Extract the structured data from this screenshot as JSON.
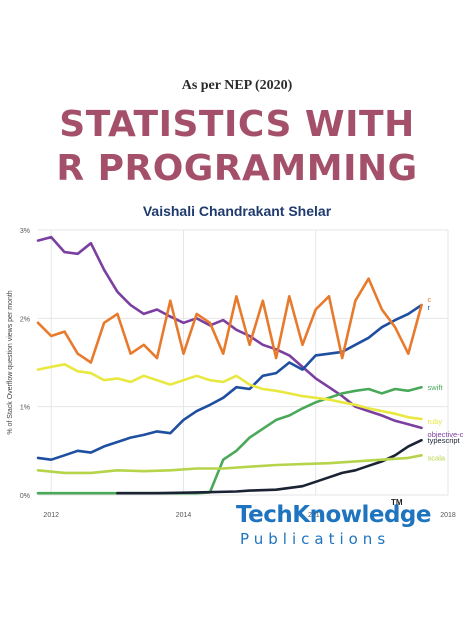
{
  "cover": {
    "edition": "As per NEP (2020)",
    "title_line1": "STATISTICS WITH",
    "title_line2": "R PROGRAMMING",
    "author": "Vaishali Chandrakant Shelar",
    "title_color": "#a4506a",
    "author_color": "#1f3a6e"
  },
  "publisher": {
    "name": "TechKnowledge",
    "tagline": "Publications",
    "trademark": "TM",
    "brand_color": "#1f74c0"
  },
  "chart_data": {
    "type": "line",
    "ylabel": "% of Stack Overflow question views per month",
    "xlabel": "",
    "yticks": [
      "0%",
      "1%",
      "2%",
      "3%"
    ],
    "xticks": [
      "2012",
      "2014",
      "2016",
      "2018"
    ],
    "ylim": [
      0,
      3
    ],
    "xlim": [
      2011.8,
      2018.0
    ],
    "grid": true,
    "series": [
      {
        "name": "objective-c",
        "color": "#7b3fa0",
        "x": [
          2011.8,
          2012.0,
          2012.2,
          2012.4,
          2012.6,
          2012.8,
          2013.0,
          2013.2,
          2013.4,
          2013.6,
          2013.8,
          2014.0,
          2014.2,
          2014.4,
          2014.6,
          2014.8,
          2015.0,
          2015.2,
          2015.4,
          2015.6,
          2015.8,
          2016.0,
          2016.2,
          2016.4,
          2016.6,
          2016.8,
          2017.0,
          2017.2,
          2017.4,
          2017.6
        ],
        "y": [
          2.88,
          2.92,
          2.75,
          2.73,
          2.85,
          2.55,
          2.3,
          2.15,
          2.05,
          2.1,
          2.02,
          1.95,
          2.0,
          1.92,
          1.98,
          1.87,
          1.8,
          1.7,
          1.65,
          1.58,
          1.45,
          1.32,
          1.22,
          1.12,
          1.0,
          0.95,
          0.9,
          0.84,
          0.8,
          0.76
        ]
      },
      {
        "name": "r",
        "color": "#1f4fa0",
        "x": [
          2011.8,
          2012.0,
          2012.2,
          2012.4,
          2012.6,
          2012.8,
          2013.0,
          2013.2,
          2013.4,
          2013.6,
          2013.8,
          2014.0,
          2014.2,
          2014.4,
          2014.6,
          2014.8,
          2015.0,
          2015.2,
          2015.4,
          2015.6,
          2015.8,
          2016.0,
          2016.2,
          2016.4,
          2016.6,
          2016.8,
          2017.0,
          2017.2,
          2017.4,
          2017.6
        ],
        "y": [
          0.42,
          0.4,
          0.45,
          0.5,
          0.48,
          0.55,
          0.6,
          0.65,
          0.68,
          0.72,
          0.7,
          0.85,
          0.95,
          1.02,
          1.1,
          1.22,
          1.2,
          1.35,
          1.38,
          1.5,
          1.42,
          1.58,
          1.6,
          1.62,
          1.7,
          1.78,
          1.9,
          1.98,
          2.05,
          2.15
        ]
      },
      {
        "name": "c",
        "color": "#e87a2d",
        "x": [
          2011.8,
          2012.0,
          2012.2,
          2012.4,
          2012.6,
          2012.8,
          2013.0,
          2013.2,
          2013.4,
          2013.6,
          2013.8,
          2014.0,
          2014.2,
          2014.4,
          2014.6,
          2014.8,
          2015.0,
          2015.2,
          2015.4,
          2015.6,
          2015.8,
          2016.0,
          2016.2,
          2016.4,
          2016.6,
          2016.8,
          2017.0,
          2017.2,
          2017.4,
          2017.6
        ],
        "y": [
          1.95,
          1.8,
          1.85,
          1.6,
          1.5,
          1.95,
          2.05,
          1.6,
          1.7,
          1.55,
          2.2,
          1.6,
          2.05,
          1.95,
          1.6,
          2.25,
          1.7,
          2.2,
          1.55,
          2.25,
          1.7,
          2.1,
          2.25,
          1.55,
          2.2,
          2.45,
          2.1,
          1.9,
          1.6,
          2.15
        ]
      },
      {
        "name": "swift",
        "color": "#4aa85a",
        "x": [
          2011.8,
          2012.4,
          2013.0,
          2013.6,
          2014.2,
          2014.4,
          2014.6,
          2014.8,
          2015.0,
          2015.2,
          2015.4,
          2015.6,
          2015.8,
          2016.0,
          2016.2,
          2016.4,
          2016.6,
          2016.8,
          2017.0,
          2017.2,
          2017.4,
          2017.6
        ],
        "y": [
          0.02,
          0.02,
          0.02,
          0.02,
          0.02,
          0.03,
          0.4,
          0.5,
          0.65,
          0.75,
          0.85,
          0.9,
          0.98,
          1.05,
          1.1,
          1.15,
          1.18,
          1.2,
          1.15,
          1.2,
          1.18,
          1.22
        ]
      },
      {
        "name": "ruby",
        "color": "#e8e840",
        "x": [
          2011.8,
          2012.0,
          2012.2,
          2012.4,
          2012.6,
          2012.8,
          2013.0,
          2013.2,
          2013.4,
          2013.6,
          2013.8,
          2014.0,
          2014.2,
          2014.4,
          2014.6,
          2014.8,
          2015.0,
          2015.2,
          2015.4,
          2015.6,
          2015.8,
          2016.0,
          2016.2,
          2016.4,
          2016.6,
          2016.8,
          2017.0,
          2017.2,
          2017.4,
          2017.6
        ],
        "y": [
          1.42,
          1.45,
          1.48,
          1.4,
          1.38,
          1.3,
          1.32,
          1.28,
          1.35,
          1.3,
          1.25,
          1.3,
          1.35,
          1.3,
          1.28,
          1.35,
          1.25,
          1.2,
          1.18,
          1.15,
          1.12,
          1.1,
          1.08,
          1.05,
          1.02,
          0.98,
          0.95,
          0.92,
          0.88,
          0.86
        ]
      },
      {
        "name": "typescript",
        "color": "#1a2233",
        "x": [
          2013.0,
          2013.6,
          2014.2,
          2014.8,
          2015.0,
          2015.4,
          2015.8,
          2016.0,
          2016.2,
          2016.4,
          2016.6,
          2016.8,
          2017.0,
          2017.2,
          2017.4,
          2017.6
        ],
        "y": [
          0.02,
          0.02,
          0.03,
          0.04,
          0.05,
          0.06,
          0.1,
          0.15,
          0.2,
          0.25,
          0.28,
          0.33,
          0.38,
          0.45,
          0.55,
          0.62
        ]
      },
      {
        "name": "scala",
        "color": "#b5d44a",
        "x": [
          2011.8,
          2012.2,
          2012.6,
          2013.0,
          2013.4,
          2013.8,
          2014.2,
          2014.6,
          2015.0,
          2015.4,
          2015.8,
          2016.2,
          2016.6,
          2017.0,
          2017.4,
          2017.6
        ],
        "y": [
          0.28,
          0.25,
          0.25,
          0.28,
          0.27,
          0.28,
          0.3,
          0.3,
          0.32,
          0.34,
          0.35,
          0.36,
          0.38,
          0.4,
          0.42,
          0.45
        ]
      }
    ],
    "end_labels": [
      "c",
      "r",
      "swift",
      "ruby",
      "objective-c",
      "typescript",
      "scala"
    ]
  }
}
